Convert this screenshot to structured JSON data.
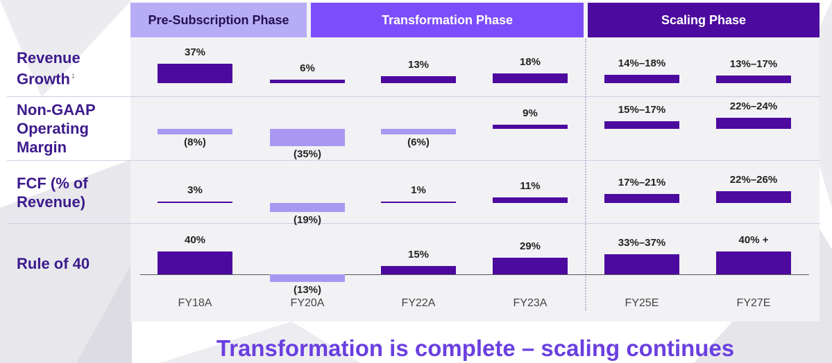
{
  "phases": [
    {
      "label": "Pre-Subscription Phase",
      "bg": "#b7adf7",
      "fg": "#231050"
    },
    {
      "label": "Transformation Phase",
      "bg": "#7c4dfa",
      "fg": "#ffffff"
    },
    {
      "label": "Scaling Phase",
      "bg": "#4c0a9e",
      "fg": "#ffffff"
    }
  ],
  "row_labels": {
    "revenue_growth": [
      "Revenue",
      "Growth"
    ],
    "revenue_growth_footnote": "1",
    "operating_margin": [
      "Non-GAAP",
      "Operating",
      "Margin"
    ],
    "fcf": [
      "FCF (% of",
      "Revenue)"
    ],
    "rule_of_40": "Rule of 40"
  },
  "headline": "Transformation is complete – scaling continues",
  "colors": {
    "positive": "#4c0a9e",
    "negative": "#a898f2",
    "title_text": "#3d1a8c",
    "headline": "#6a3fe0"
  },
  "chart_data": [
    {
      "type": "bar",
      "metric": "Revenue Growth",
      "categories": [
        "FY18A",
        "FY20A",
        "FY22A",
        "FY23A",
        "FY25E",
        "FY27E"
      ],
      "values": [
        37,
        6,
        13,
        18,
        16,
        15
      ],
      "labels": [
        "37%",
        "6%",
        "13%",
        "18%",
        "14%–18%",
        "13%–17%"
      ]
    },
    {
      "type": "bar",
      "metric": "Non-GAAP Operating Margin",
      "categories": [
        "FY18A",
        "FY20A",
        "FY22A",
        "FY23A",
        "FY25E",
        "FY27E"
      ],
      "values": [
        -8,
        -35,
        -6,
        9,
        16,
        23
      ],
      "labels": [
        "(8%)",
        "(35%)",
        "(6%)",
        "9%",
        "15%–17%",
        "22%–24%"
      ]
    },
    {
      "type": "bar",
      "metric": "FCF (% of Revenue)",
      "categories": [
        "FY18A",
        "FY20A",
        "FY22A",
        "FY23A",
        "FY25E",
        "FY27E"
      ],
      "values": [
        3,
        -19,
        1,
        11,
        19,
        24
      ],
      "labels": [
        "3%",
        "(19%)",
        "1%",
        "11%",
        "17%–21%",
        "22%–26%"
      ]
    },
    {
      "type": "bar",
      "metric": "Rule of 40",
      "categories": [
        "FY18A",
        "FY20A",
        "FY22A",
        "FY23A",
        "FY25E",
        "FY27E"
      ],
      "values": [
        40,
        -13,
        15,
        29,
        35,
        40
      ],
      "labels": [
        "40%",
        "(13%)",
        "15%",
        "29%",
        "33%–37%",
        "40% +"
      ]
    }
  ]
}
